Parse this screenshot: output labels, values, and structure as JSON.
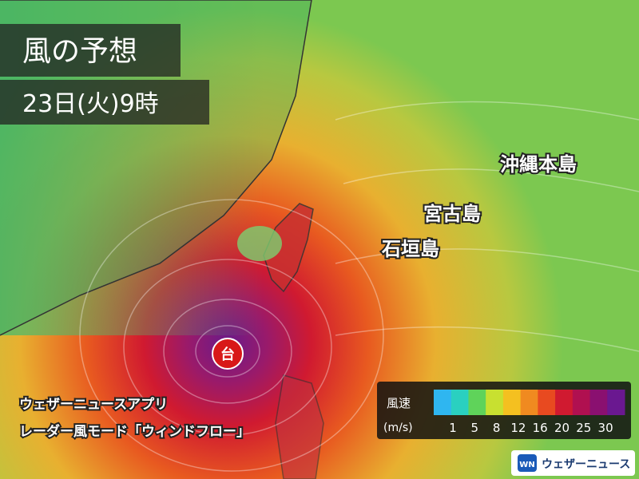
{
  "header": {
    "title": "風の予想",
    "date": "23日(火)9時"
  },
  "places": [
    {
      "label": "沖縄本島"
    },
    {
      "label": "宮古島"
    },
    {
      "label": "石垣島"
    }
  ],
  "typhoon": {
    "label": "台"
  },
  "caption": {
    "line1": "ウェザーニュースアプリ",
    "line2": "レーダー風モード「ウィンドフロー」"
  },
  "legend": {
    "title": "風速",
    "unit": "(m/s)",
    "ticks": [
      1,
      5,
      8,
      12,
      16,
      20,
      25,
      30
    ],
    "colors": [
      "#2fb6f0",
      "#2ad0c0",
      "#5fd35a",
      "#c8e030",
      "#f4c020",
      "#f08a20",
      "#e84a20",
      "#d01a30",
      "#b01050",
      "#8a1070",
      "#6a1890"
    ]
  },
  "logo": {
    "icon": "WN",
    "text": "ウェザーニュース"
  }
}
